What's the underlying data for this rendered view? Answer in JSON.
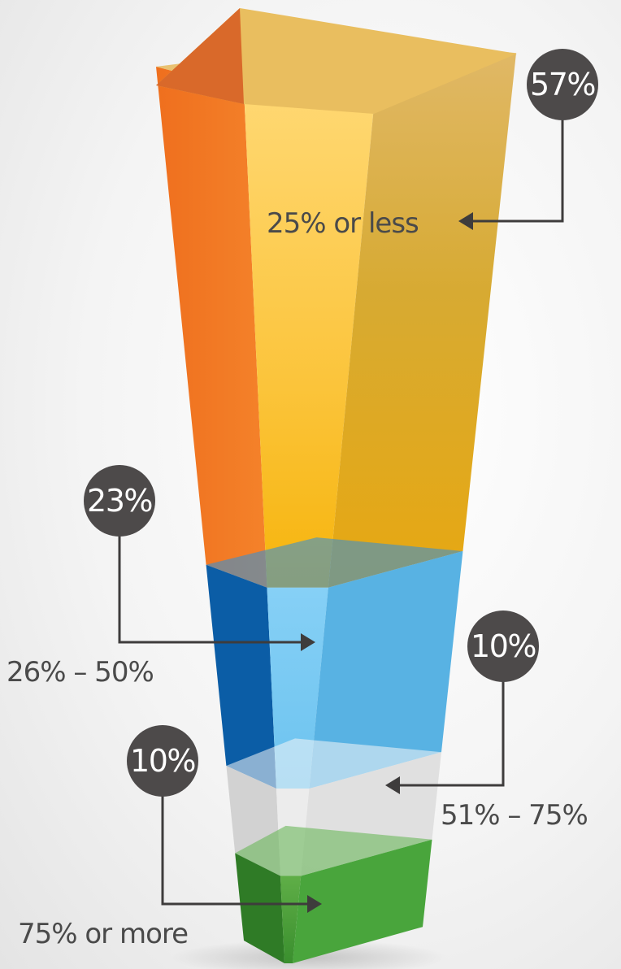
{
  "chart_data": {
    "type": "bar",
    "title": "",
    "xlabel": "",
    "ylabel": "",
    "categories": [
      "25% or less",
      "26% – 50%",
      "51% – 75%",
      "75% or more"
    ],
    "values": [
      57,
      23,
      10,
      10
    ],
    "value_labels": [
      "57%",
      "23%",
      "10%",
      "10%"
    ],
    "unit": "%",
    "stacked": true,
    "grid": false,
    "legend": "none",
    "colors": [
      "#f5b82e",
      "#5bbcea",
      "#dcdcdc",
      "#3f9a3a"
    ]
  },
  "badge_color": "#4d4a4a",
  "leader_color": "#3e3c3c"
}
